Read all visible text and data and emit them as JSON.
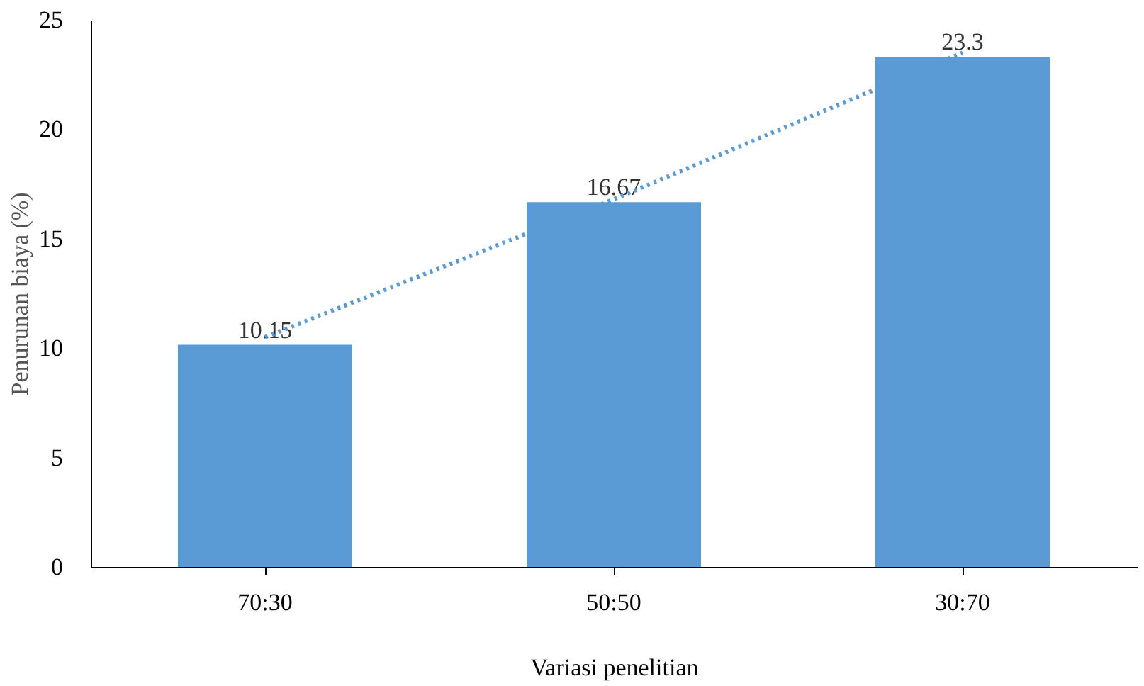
{
  "chart_data": {
    "type": "bar",
    "xlabel": "Variasi penelitian",
    "ylabel": "Penurunan biaya (%)",
    "categories": [
      "70:30",
      "50:50",
      "30:70"
    ],
    "series": [
      {
        "color": "#5b9bd5",
        "values": [
          10.15,
          16.67,
          23.3
        ],
        "value_labels": [
          "10.15",
          "16.67",
          "23.3"
        ]
      },
      {
        "type": "line",
        "color": "#5b9bd5",
        "values": [
          10.5,
          16.8,
          23.5
        ],
        "line_style": "dotted",
        "marker": "none"
      }
    ],
    "ylim": [
      0,
      25
    ],
    "yticks": [
      0,
      5,
      10,
      15,
      20,
      25
    ],
    "grid": false
  }
}
